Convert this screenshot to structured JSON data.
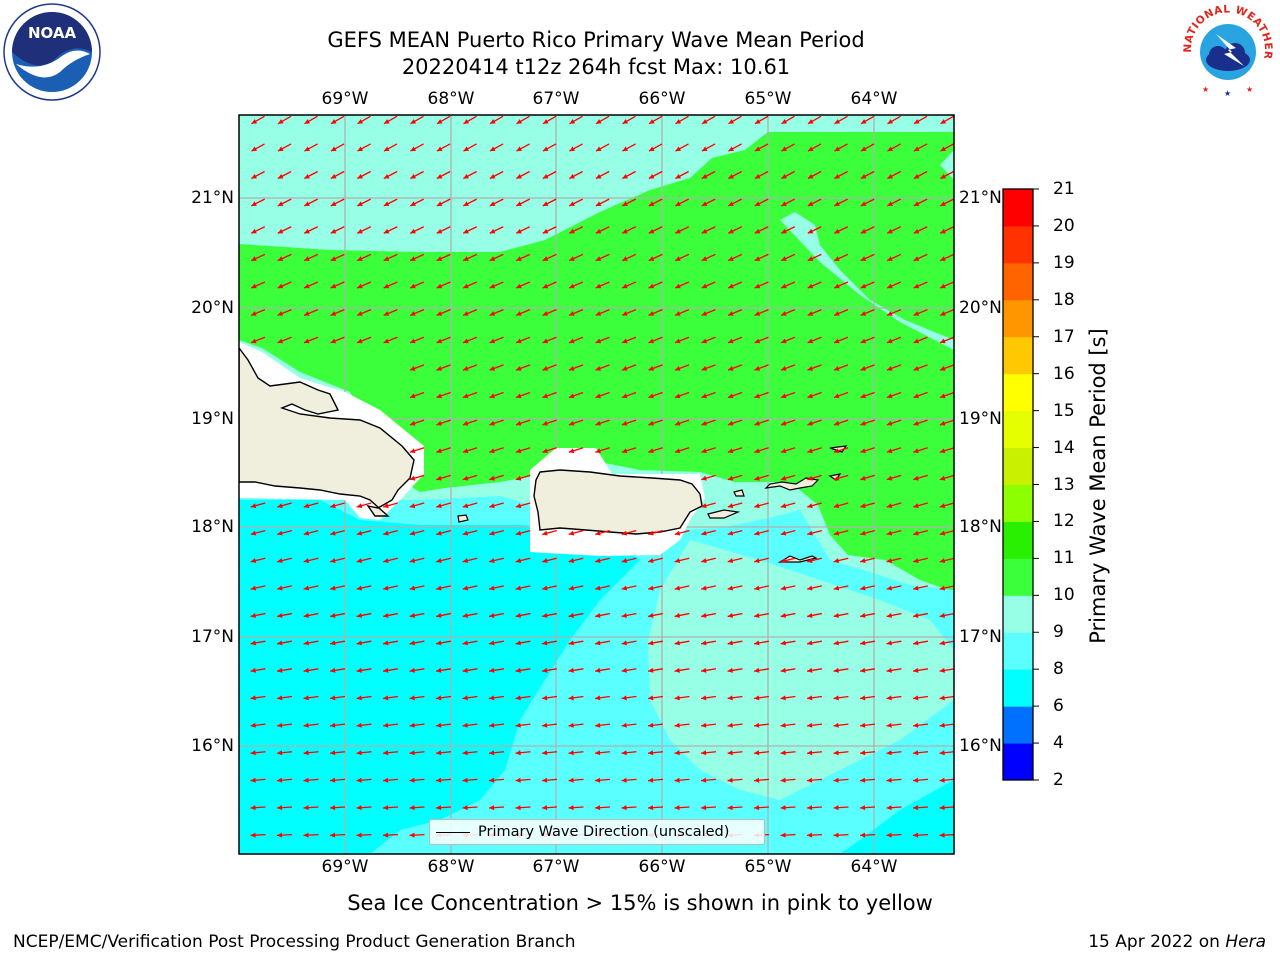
{
  "header": {
    "title_line1": "GEFS MEAN Puerto Rico Primary Wave Mean Period",
    "title_line2": "20220414 t12z 264h fcst   Max: 10.61"
  },
  "logos": {
    "left": {
      "name": "noaa-logo",
      "text": "NOAA"
    },
    "right": {
      "name": "nws-weather-service-logo",
      "text": "NATIONAL WEATHER SERVICE"
    }
  },
  "map": {
    "lon_labels": [
      "69°W",
      "68°W",
      "67°W",
      "66°W",
      "65°W",
      "64°W"
    ],
    "lat_labels": [
      "21°N",
      "20°N",
      "19°N",
      "18°N",
      "17°N",
      "16°N"
    ],
    "legend_label": "Primary Wave Direction (unscaled)",
    "colors": {
      "land": "#f0eedc",
      "arrow": "#ff0000",
      "grid": "#b0b0b0"
    }
  },
  "colorbar": {
    "label": "Primary Wave Mean Period [s]",
    "ticks": [
      "2",
      "4",
      "6",
      "8",
      "9",
      "10",
      "11",
      "12",
      "13",
      "14",
      "15",
      "16",
      "17",
      "18",
      "19",
      "20",
      "21"
    ],
    "colors": [
      "#0000ff",
      "#0070ff",
      "#00ffff",
      "#5affff",
      "#96ffe6",
      "#3cff3c",
      "#28f000",
      "#8cff00",
      "#c8f000",
      "#e6ff00",
      "#ffff00",
      "#ffc800",
      "#ff9600",
      "#ff6400",
      "#ff3200",
      "#ff0000"
    ]
  },
  "note": "Sea Ice Concentration > 15% is shown in pink to yellow",
  "footer": {
    "left": "NCEP/EMC/Verification Post Processing Product Generation Branch",
    "right_date": "15 Apr 2022 on",
    "right_host": "Hera"
  }
}
